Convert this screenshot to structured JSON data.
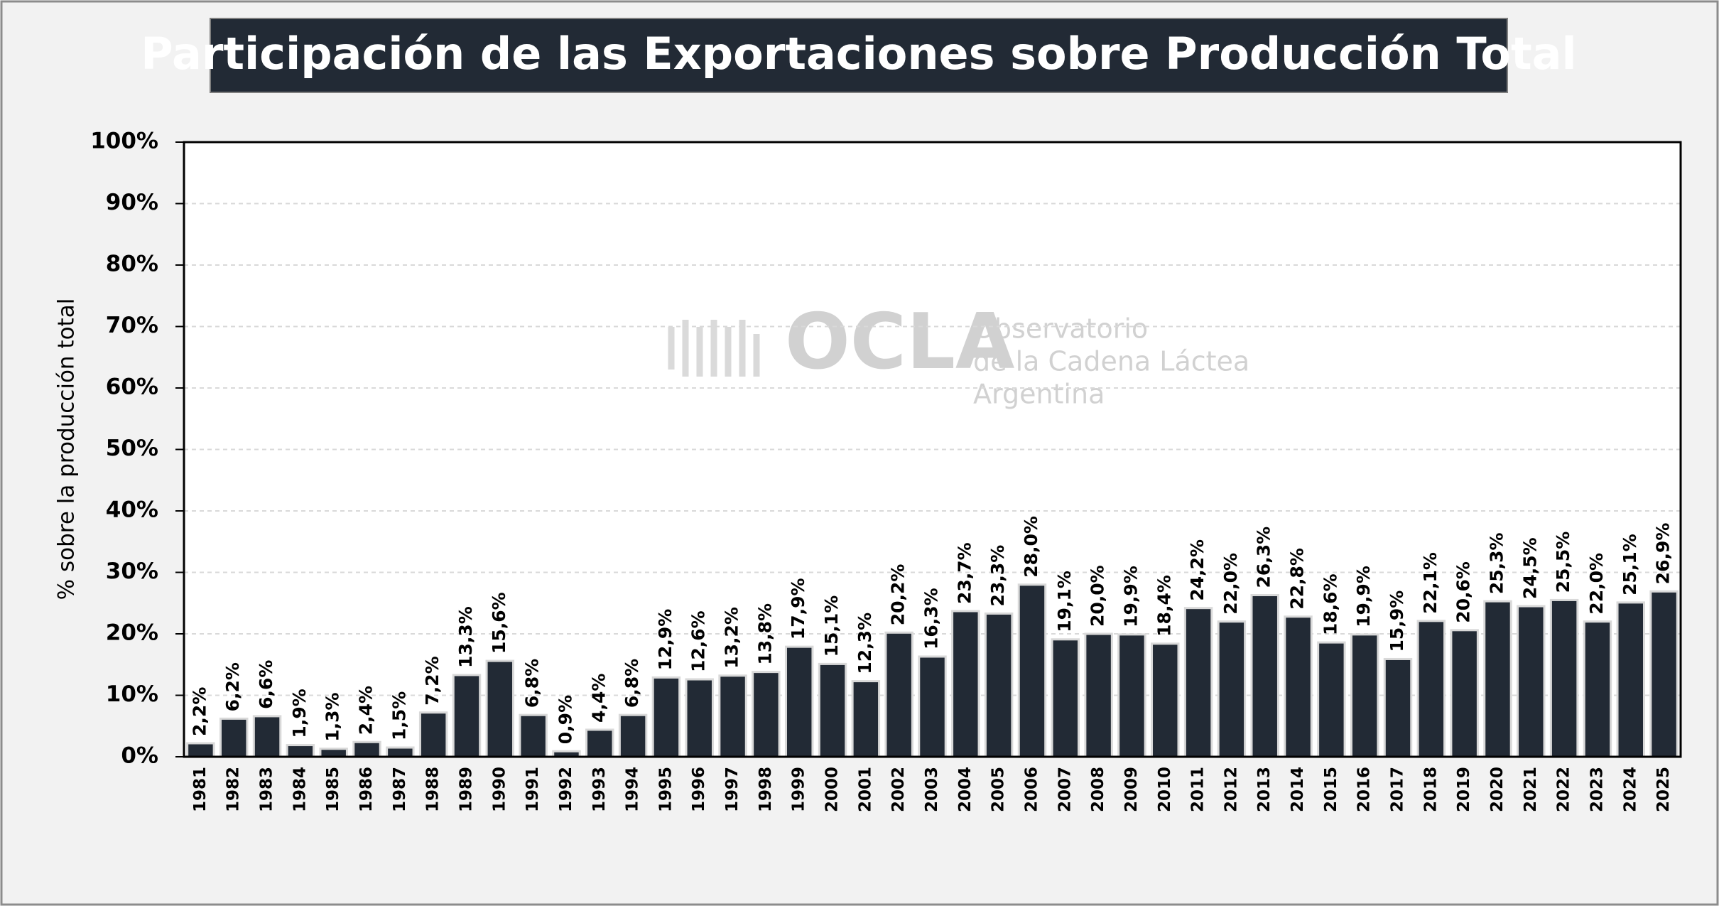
{
  "chart_data": {
    "type": "bar",
    "title": "Participación de las Exportaciones sobre Producción Total",
    "y_label": "% sobre la producción total",
    "watermark": {
      "logo": "OCLA",
      "lines": [
        "Observatorio",
        "de la Cadena Láctea",
        "Argentina"
      ]
    },
    "categories": [
      "1981",
      "1982",
      "1983",
      "1984",
      "1985",
      "1986",
      "1987",
      "1988",
      "1989",
      "1990",
      "1991",
      "1992",
      "1993",
      "1994",
      "1995",
      "1996",
      "1997",
      "1998",
      "1999",
      "2000",
      "2001",
      "2002",
      "2003",
      "2004",
      "2005",
      "2006",
      "2007",
      "2008",
      "2009",
      "2010",
      "2011",
      "2012",
      "2013",
      "2014",
      "2015",
      "2016",
      "2017",
      "2018",
      "2019",
      "2020",
      "2021",
      "2022",
      "2023",
      "2024",
      "2025"
    ],
    "values": [
      2.2,
      6.2,
      6.6,
      1.9,
      1.3,
      2.4,
      1.5,
      7.2,
      13.3,
      15.6,
      6.8,
      0.9,
      4.4,
      6.8,
      12.9,
      12.6,
      13.2,
      13.8,
      17.9,
      15.1,
      12.3,
      20.2,
      16.3,
      23.7,
      23.3,
      28.0,
      19.1,
      20.0,
      19.9,
      18.4,
      24.2,
      22.0,
      26.3,
      22.8,
      18.6,
      19.9,
      15.9,
      22.1,
      20.6,
      25.3,
      24.5,
      25.5,
      22.0,
      25.1,
      26.9
    ],
    "value_labels": [
      "2,2%",
      "6,2%",
      "6,6%",
      "1,9%",
      "1,3%",
      "2,4%",
      "1,5%",
      "7,2%",
      "13,3%",
      "15,6%",
      "6,8%",
      "0,9%",
      "4,4%",
      "6,8%",
      "12,9%",
      "12,6%",
      "13,2%",
      "13,8%",
      "17,9%",
      "15,1%",
      "12,3%",
      "20,2%",
      "16,3%",
      "23,7%",
      "23,3%",
      "28,0%",
      "19,1%",
      "20,0%",
      "19,9%",
      "18,4%",
      "24,2%",
      "22,0%",
      "26,3%",
      "22,8%",
      "18,6%",
      "19,9%",
      "15,9%",
      "22,1%",
      "20,6%",
      "25,3%",
      "24,5%",
      "25,5%",
      "22,0%",
      "25,1%",
      "26,9%"
    ],
    "color": "#222a35",
    "ylim": [
      0,
      100
    ],
    "yticks": [
      {
        "value": 0,
        "label": "0%"
      },
      {
        "value": 10,
        "label": "10%"
      },
      {
        "value": 20,
        "label": "20%"
      },
      {
        "value": 30,
        "label": "30%"
      },
      {
        "value": 40,
        "label": "40%"
      },
      {
        "value": 50,
        "label": "50%"
      },
      {
        "value": 60,
        "label": "60%"
      },
      {
        "value": 70,
        "label": "70%"
      },
      {
        "value": 80,
        "label": "80%"
      },
      {
        "value": 90,
        "label": "90%"
      },
      {
        "value": 100,
        "label": "100%"
      }
    ],
    "grid": true
  }
}
